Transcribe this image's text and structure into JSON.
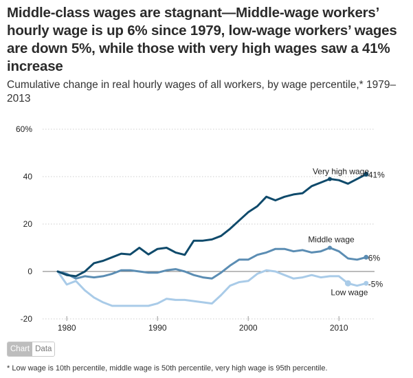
{
  "title": "Middle-class wages are stagnant—Middle-wage workers’ hourly wage is up 6% since 1979, low-wage workers’ wages are down 5%, while those with very high wages saw a 41% increase",
  "subtitle": "Cumulative change in real hourly wages of all workers, by wage percentile,* 1979–2013",
  "toggle": {
    "chart_label": "Chart",
    "data_label": "Data",
    "active": "Chart"
  },
  "footnote": "* Low wage is 10th percentile, middle wage is 50th percentile, very high wage is 95th percentile.",
  "chart_data": {
    "type": "line",
    "title": "Cumulative change in real hourly wages of all workers, by wage percentile, 1979–2013",
    "xlabel": "",
    "ylabel": "",
    "xlim": [
      1979,
      2013
    ],
    "ylim": [
      -20,
      60
    ],
    "y_ticks": [
      -20,
      0,
      20,
      40,
      60
    ],
    "y_tick_labels": [
      "-20",
      "0",
      "20",
      "40",
      "60%"
    ],
    "x_ticks": [
      1980,
      1990,
      2000,
      2010
    ],
    "x_tick_labels": [
      "1980",
      "1990",
      "2000",
      "2010"
    ],
    "grid": true,
    "legend": "inline labels",
    "x": [
      1979,
      1980,
      1981,
      1982,
      1983,
      1984,
      1985,
      1986,
      1987,
      1988,
      1989,
      1990,
      1991,
      1992,
      1993,
      1994,
      1995,
      1996,
      1997,
      1998,
      1999,
      2000,
      2001,
      2002,
      2003,
      2004,
      2005,
      2006,
      2007,
      2008,
      2009,
      2010,
      2011,
      2012,
      2013
    ],
    "series": [
      {
        "name": "Very high wage",
        "color": "#0f4a6b",
        "end_label": "41%",
        "values": [
          0,
          -1.5,
          -2,
          0,
          3.5,
          4.5,
          6,
          7.5,
          7.2,
          10,
          7.2,
          9.5,
          10,
          8,
          7,
          13,
          13,
          13.5,
          15,
          18,
          21.5,
          25,
          27.5,
          31.5,
          30,
          31.5,
          32.5,
          33,
          36,
          37.5,
          39,
          38.5,
          37,
          39,
          41
        ]
      },
      {
        "name": "Middle wage",
        "color": "#5b8db3",
        "end_label": "6%",
        "values": [
          0,
          -1,
          -3,
          -2,
          -2.5,
          -2,
          -1,
          0.5,
          0.5,
          0,
          -0.5,
          -0.5,
          0.5,
          1,
          0,
          -1.5,
          -2.5,
          -3,
          -0.5,
          2.5,
          5,
          5,
          7,
          8,
          9.5,
          9.5,
          8.5,
          9,
          8,
          8.5,
          10,
          8.5,
          5.5,
          5,
          6
        ]
      },
      {
        "name": "Low wage",
        "color": "#a9cbe8",
        "end_label": "-5%",
        "values": [
          0,
          -5.5,
          -4,
          -8,
          -11,
          -13,
          -14.5,
          -14.5,
          -14.5,
          -14.5,
          -14.5,
          -13.5,
          -11.5,
          -12,
          -12,
          -12.5,
          -13,
          -13.5,
          -10,
          -6,
          -4.5,
          -4,
          -1,
          0.5,
          0,
          -1.5,
          -3,
          -2.5,
          -1.5,
          -2.5,
          -2,
          -2,
          -5,
          -6,
          -5
        ]
      }
    ],
    "annotations": [
      {
        "series": "Very high wage",
        "label": "Very high wage",
        "at_year": 2009
      },
      {
        "series": "Middle wage",
        "label": "Middle wage",
        "at_year": 2009
      },
      {
        "series": "Low wage",
        "label": "Low wage",
        "at_year": 2011
      }
    ]
  }
}
